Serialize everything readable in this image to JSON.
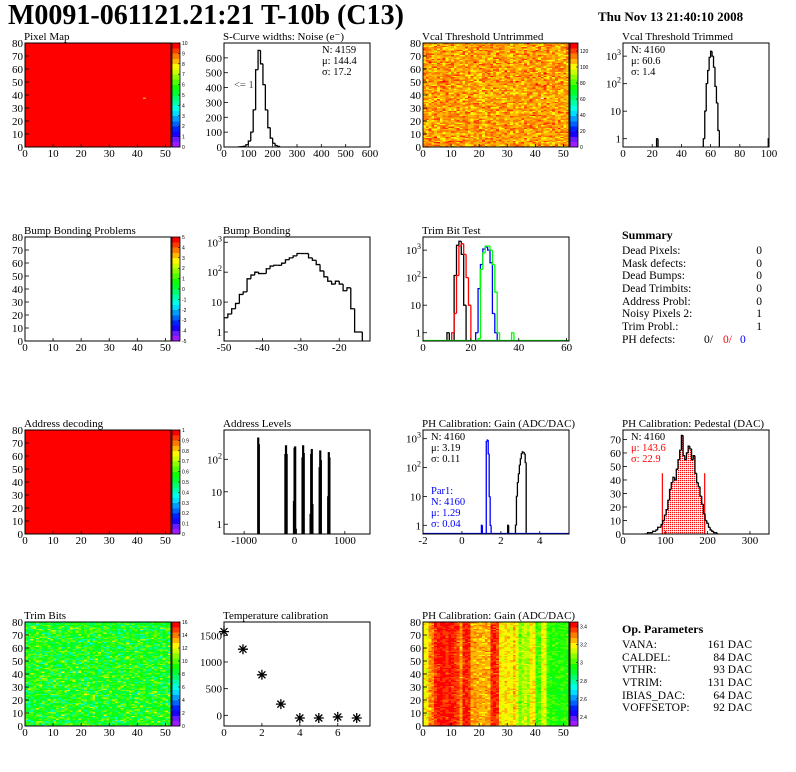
{
  "header": {
    "title": "M0091-061121.21:21 T-10b (C13)",
    "date": "Thu Nov 13 21:40:10 2008"
  },
  "summary": {
    "title": "Summary",
    "rows": [
      {
        "label": "Dead Pixels:",
        "value": "0"
      },
      {
        "label": "Mask defects:",
        "value": "0"
      },
      {
        "label": "Dead Bumps:",
        "value": "0"
      },
      {
        "label": "Dead Trimbits:",
        "value": "0"
      },
      {
        "label": "Address Probl:",
        "value": "0"
      },
      {
        "label": "Noisy Pixels 2:",
        "value": "1"
      },
      {
        "label": "Trim Probl.:",
        "value": "1"
      }
    ],
    "ph_defects": {
      "label": "PH defects:",
      "v1": "0/",
      "v2": "0/",
      "v3": "0"
    }
  },
  "op_parameters": {
    "title": "Op. Parameters",
    "rows": [
      {
        "label": "VANA:",
        "value": "161 DAC"
      },
      {
        "label": "CALDEL:",
        "value": "84 DAC"
      },
      {
        "label": "VTHR:",
        "value": "93 DAC"
      },
      {
        "label": "VTRIM:",
        "value": "131 DAC"
      },
      {
        "label": "IBIAS_DAC:",
        "value": "64 DAC"
      },
      {
        "label": "VOFFSETOP:",
        "value": "92 DAC"
      }
    ]
  },
  "colors": {
    "black": "#000000",
    "red": "#ff0000",
    "blue": "#0000ff",
    "green": "#00ff00"
  },
  "chart_data": [
    {
      "type": "heatmap",
      "title": "Pixel Map",
      "xlim": [
        0,
        52
      ],
      "ylim": [
        0,
        80
      ],
      "zlim": [
        0,
        10
      ],
      "xticks": [
        "0",
        "10",
        "20",
        "30",
        "40",
        "50"
      ],
      "yticks": [
        "0",
        "10",
        "20",
        "30",
        "40",
        "50",
        "60",
        "70",
        "80"
      ],
      "zticks": [
        "0",
        "1",
        "2",
        "3",
        "4",
        "5",
        "6",
        "7",
        "8",
        "9",
        "10"
      ],
      "uniform_value": 10,
      "special_cells": [
        {
          "x": 42,
          "y": 37,
          "value": 8
        }
      ]
    },
    {
      "type": "hist",
      "title": "S-Curve widths: Noise (e⁻)",
      "xlim": [
        0,
        600
      ],
      "ylim": [
        0,
        700
      ],
      "log": false,
      "xticks": [
        "0",
        "100",
        "200",
        "300",
        "400",
        "500",
        "600"
      ],
      "yticks": [
        "0",
        "100",
        "200",
        "300",
        "400",
        "500",
        "600"
      ],
      "series": [
        {
          "color": "#000000",
          "bin_start": 60,
          "bin_width": 10,
          "values": [
            1,
            2,
            5,
            15,
            40,
            100,
            250,
            520,
            650,
            560,
            420,
            250,
            130,
            60,
            25,
            10,
            4
          ]
        }
      ],
      "stats": {
        "pos": "right",
        "lines": [
          {
            "text": "N: 4159",
            "color": "#000000"
          },
          {
            "text": "μ: 144.4",
            "color": "#000000"
          },
          {
            "text": "σ: 17.2",
            "color": "#000000"
          }
        ]
      },
      "annotation": "<= 1"
    },
    {
      "type": "heatmap",
      "title": "Vcal Threshold Untrimmed",
      "xlim": [
        0,
        52
      ],
      "ylim": [
        0,
        80
      ],
      "zlim": [
        0,
        130
      ],
      "xticks": [
        "0",
        "10",
        "20",
        "30",
        "40",
        "50"
      ],
      "yticks": [
        "0",
        "10",
        "20",
        "30",
        "40",
        "50",
        "60",
        "70",
        "80"
      ],
      "zticks": [
        "0",
        "20",
        "40",
        "60",
        "80",
        "100",
        "120"
      ],
      "typical_value": 110,
      "spread": 8,
      "special_cells": [
        {
          "x": 42,
          "y": 37,
          "value": 0
        }
      ]
    },
    {
      "type": "hist",
      "title": "Vcal Threshold Trimmed",
      "xlim": [
        0,
        100
      ],
      "ylim": [
        0.5,
        3000
      ],
      "log": true,
      "xticks": [
        "0",
        "20",
        "40",
        "60",
        "80",
        "100"
      ],
      "yticks": [
        "1",
        "10",
        "10^2",
        "10^3"
      ],
      "series": [
        {
          "color": "#000000",
          "bin_start": 54,
          "bin_width": 1,
          "values": [
            0,
            1,
            10,
            100,
            300,
            900,
            1500,
            1000,
            400,
            80,
            20,
            2
          ]
        },
        {
          "color": "#000000",
          "bin_start": 23,
          "bin_width": 1,
          "values": [
            1
          ]
        },
        {
          "color": "#000000",
          "bin_start": 99.5,
          "bin_width": 0.5,
          "values": [
            1
          ]
        }
      ],
      "stats": {
        "pos": "left",
        "lines": [
          {
            "text": "N: 4160",
            "color": "#000000"
          },
          {
            "text": "μ: 60.6",
            "color": "#000000"
          },
          {
            "text": "σ:  1.4",
            "color": "#000000"
          }
        ]
      }
    },
    {
      "type": "heatmap",
      "title": "Bump Bonding Problems",
      "xlim": [
        0,
        52
      ],
      "ylim": [
        0,
        80
      ],
      "zlim": [
        -5,
        5
      ],
      "xticks": [
        "0",
        "10",
        "20",
        "30",
        "40",
        "50"
      ],
      "yticks": [
        "0",
        "10",
        "20",
        "30",
        "40",
        "50",
        "60",
        "70",
        "80"
      ],
      "zticks": [
        "-5",
        "-4",
        "-3",
        "-2",
        "-1",
        "0",
        "1",
        "2",
        "3",
        "4",
        "5"
      ],
      "empty": true
    },
    {
      "type": "hist",
      "title": "Bump Bonding",
      "xlim": [
        -50,
        -12
      ],
      "ylim": [
        0.5,
        1500
      ],
      "log": true,
      "xticks": [
        "-50",
        "-40",
        "-30",
        "-20"
      ],
      "yticks": [
        "1",
        "10",
        "10^2",
        "10^3"
      ],
      "series": [
        {
          "color": "#000000",
          "bin_start": -50,
          "bin_width": 1,
          "values": [
            3,
            4,
            6,
            9,
            18,
            22,
            60,
            80,
            100,
            90,
            90,
            130,
            160,
            170,
            170,
            200,
            260,
            300,
            350,
            420,
            420,
            420,
            300,
            250,
            180,
            110,
            70,
            50,
            40,
            50,
            40,
            24,
            30,
            6,
            1,
            1
          ]
        }
      ]
    },
    {
      "type": "hist",
      "title": "Trim Bit Test",
      "xlim": [
        0,
        61
      ],
      "ylim": [
        0.5,
        3000
      ],
      "log": true,
      "xticks": [
        "0",
        "20",
        "40",
        "60"
      ],
      "yticks": [
        "1",
        "10",
        "10^2",
        "10^3"
      ],
      "series": [
        {
          "color": "#000000",
          "bin_start": 10,
          "bin_width": 1,
          "values": [
            1,
            0,
            0,
            120,
            1500,
            2100,
            700,
            10
          ]
        },
        {
          "color": "#ff0000",
          "bin_start": 12,
          "bin_width": 1,
          "values": [
            1,
            5,
            120,
            1400,
            1700,
            700,
            100,
            10
          ]
        },
        {
          "color": "#0000ff",
          "bin_start": 22,
          "bin_width": 1,
          "values": [
            1,
            40,
            300,
            1100,
            1300,
            1000,
            350,
            5,
            1
          ]
        },
        {
          "color": "#00ff00",
          "bin_start": 23,
          "bin_width": 1,
          "values": [
            0.6,
            200,
            800,
            1400,
            1400,
            1000,
            300,
            30,
            1,
            0,
            0,
            0,
            0,
            0,
            1
          ]
        }
      ]
    },
    {
      "type": "heatmap",
      "title": "Address decoding",
      "xlim": [
        0,
        52
      ],
      "ylim": [
        0,
        80
      ],
      "zlim": [
        0,
        1
      ],
      "xticks": [
        "0",
        "10",
        "20",
        "30",
        "40",
        "50"
      ],
      "yticks": [
        "0",
        "10",
        "20",
        "30",
        "40",
        "50",
        "60",
        "70",
        "80"
      ],
      "zticks": [
        "0",
        "0.1",
        "0.2",
        "0.3",
        "0.4",
        "0.5",
        "0.6",
        "0.7",
        "0.8",
        "0.9",
        "1"
      ],
      "uniform_value": 1
    },
    {
      "type": "spikes",
      "title": "Address Levels",
      "xlim": [
        -1400,
        1500
      ],
      "ylim": [
        0.5,
        800
      ],
      "log": true,
      "xticks": [
        "-1000",
        "0",
        "1000"
      ],
      "yticks": [
        "1",
        "10",
        "10^2"
      ],
      "bin_width": 12,
      "bars": [
        [
          -730,
          450
        ],
        [
          -718,
          280
        ],
        [
          -190,
          140
        ],
        [
          -178,
          260
        ],
        [
          -166,
          140
        ],
        [
          -20,
          5
        ],
        [
          -8,
          220
        ],
        [
          4,
          240
        ],
        [
          16,
          0.7
        ],
        [
          150,
          110
        ],
        [
          162,
          260
        ],
        [
          174,
          150
        ],
        [
          310,
          2
        ],
        [
          322,
          140
        ],
        [
          334,
          200
        ],
        [
          346,
          4
        ],
        [
          490,
          55
        ],
        [
          502,
          180
        ],
        [
          514,
          90
        ],
        [
          660,
          7
        ],
        [
          672,
          160
        ],
        [
          684,
          110
        ]
      ]
    },
    {
      "type": "hist",
      "title": "PH Calibration: Gain (ADC/DAC)",
      "xlim": [
        -2,
        5.5
      ],
      "ylim": [
        0.5,
        2000
      ],
      "log": true,
      "xticks": [
        "-2",
        "0",
        "2",
        "4"
      ],
      "yticks": [
        "1",
        "10",
        "10^2",
        "10^3"
      ],
      "series": [
        {
          "color": "#000000",
          "bin_start": 2.35,
          "bin_width": 0.05,
          "values": [
            1,
            0,
            0,
            0,
            0,
            0,
            0,
            0,
            1,
            10,
            30,
            60,
            120,
            200,
            300,
            350,
            340,
            300,
            150,
            0
          ]
        },
        {
          "color": "#0000ff",
          "bin_start": 1.0,
          "bin_width": 0.05,
          "values": [
            1,
            0,
            0,
            0,
            0,
            800,
            900,
            300,
            10,
            1
          ]
        }
      ],
      "stats": {
        "pos": "left",
        "lines": [
          {
            "text": "N: 4160",
            "color": "#000000"
          },
          {
            "text": "μ: 3.19",
            "color": "#000000"
          },
          {
            "text": "σ: 0.11",
            "color": "#000000"
          }
        ]
      },
      "stats2": {
        "lines": [
          {
            "text": "Par1:",
            "color": "#0000ff"
          },
          {
            "text": "N: 4160",
            "color": "#0000ff"
          },
          {
            "text": "μ: 1.29",
            "color": "#0000ff"
          },
          {
            "text": "σ: 0.04",
            "color": "#0000ff"
          }
        ]
      }
    },
    {
      "type": "hist",
      "title": "PH Calibration: Pedestal (DAC)",
      "xlim": [
        0,
        345
      ],
      "ylim": [
        0,
        77
      ],
      "log": false,
      "xticks": [
        "0",
        "100",
        "200",
        "300"
      ],
      "yticks": [
        "0",
        "10",
        "20",
        "30",
        "40",
        "50",
        "60",
        "70"
      ],
      "series": [
        {
          "color": "#000000",
          "bin_start": 50,
          "bin_width": 4,
          "values": [
            0,
            0,
            1,
            1,
            1,
            2,
            2,
            3,
            5,
            5,
            7,
            10,
            14,
            18,
            25,
            33,
            38,
            42,
            40,
            48,
            55,
            62,
            73,
            58,
            55,
            60,
            65,
            63,
            55,
            58,
            45,
            38,
            35,
            28,
            22,
            15,
            10,
            8,
            5,
            3,
            2,
            1,
            1,
            0
          ]
        }
      ],
      "highlight_range": [
        93,
        193
      ],
      "highlight_color": "#ff0000",
      "stats": {
        "pos": "left",
        "lines": [
          {
            "text": "N: 4160",
            "color": "#000000"
          },
          {
            "text": "μ: 143.6",
            "color": "#ff0000"
          },
          {
            "text": "σ: 22.9",
            "color": "#ff0000"
          }
        ]
      }
    },
    {
      "type": "heatmap",
      "title": "Trim Bits",
      "xlim": [
        0,
        52
      ],
      "ylim": [
        0,
        80
      ],
      "zlim": [
        0,
        16
      ],
      "xticks": [
        "0",
        "10",
        "20",
        "30",
        "40",
        "50"
      ],
      "yticks": [
        "0",
        "10",
        "20",
        "30",
        "40",
        "50",
        "60",
        "70",
        "80"
      ],
      "zticks": [
        "0",
        "2",
        "4",
        "6",
        "8",
        "10",
        "12",
        "14",
        "16"
      ],
      "typical_value": 9,
      "spread": 1.8
    },
    {
      "type": "scatter",
      "title": "Temperature calibration",
      "xlim": [
        0,
        7.7
      ],
      "ylim": [
        -200,
        1750
      ],
      "xticks": [
        "0",
        "2",
        "4",
        "6"
      ],
      "yticks": [
        "0",
        "500",
        "1000",
        "1500"
      ],
      "marker": "star",
      "x": [
        0,
        1,
        2,
        3,
        4,
        5,
        6,
        7
      ],
      "y": [
        1570,
        1240,
        760,
        210,
        -50,
        -50,
        -30,
        -50
      ]
    },
    {
      "type": "heatmap",
      "title": "PH Calibration: Gain (ADC/DAC)",
      "xlim": [
        0,
        52
      ],
      "ylim": [
        0,
        80
      ],
      "zlim": [
        2.3,
        3.45
      ],
      "xticks": [
        "0",
        "10",
        "20",
        "30",
        "40",
        "50"
      ],
      "yticks": [
        "0",
        "10",
        "20",
        "30",
        "40",
        "50",
        "60",
        "70",
        "80"
      ],
      "zticks": [
        "2.4",
        "2.6",
        "2.8",
        "3",
        "3.2",
        "3.4"
      ],
      "spread": 0.05,
      "column_means": [
        3.18,
        3.18,
        3.28,
        3.3,
        3.38,
        3.4,
        3.42,
        3.4,
        3.38,
        3.42,
        3.4,
        3.38,
        3.36,
        3.28,
        3.4,
        3.4,
        3.38,
        3.26,
        3.27,
        3.25,
        3.26,
        3.25,
        3.27,
        3.25,
        3.38,
        3.4,
        3.36,
        3.2,
        3.18,
        3.22,
        3.2,
        3.18,
        3.24,
        3.18,
        3.05,
        3.1,
        3.12,
        3.08,
        3.2,
        3.2,
        3.0,
        3.02,
        3.15,
        3.18,
        3.0,
        2.97,
        2.98,
        2.98,
        2.96,
        2.98,
        2.97,
        2.98
      ]
    }
  ]
}
